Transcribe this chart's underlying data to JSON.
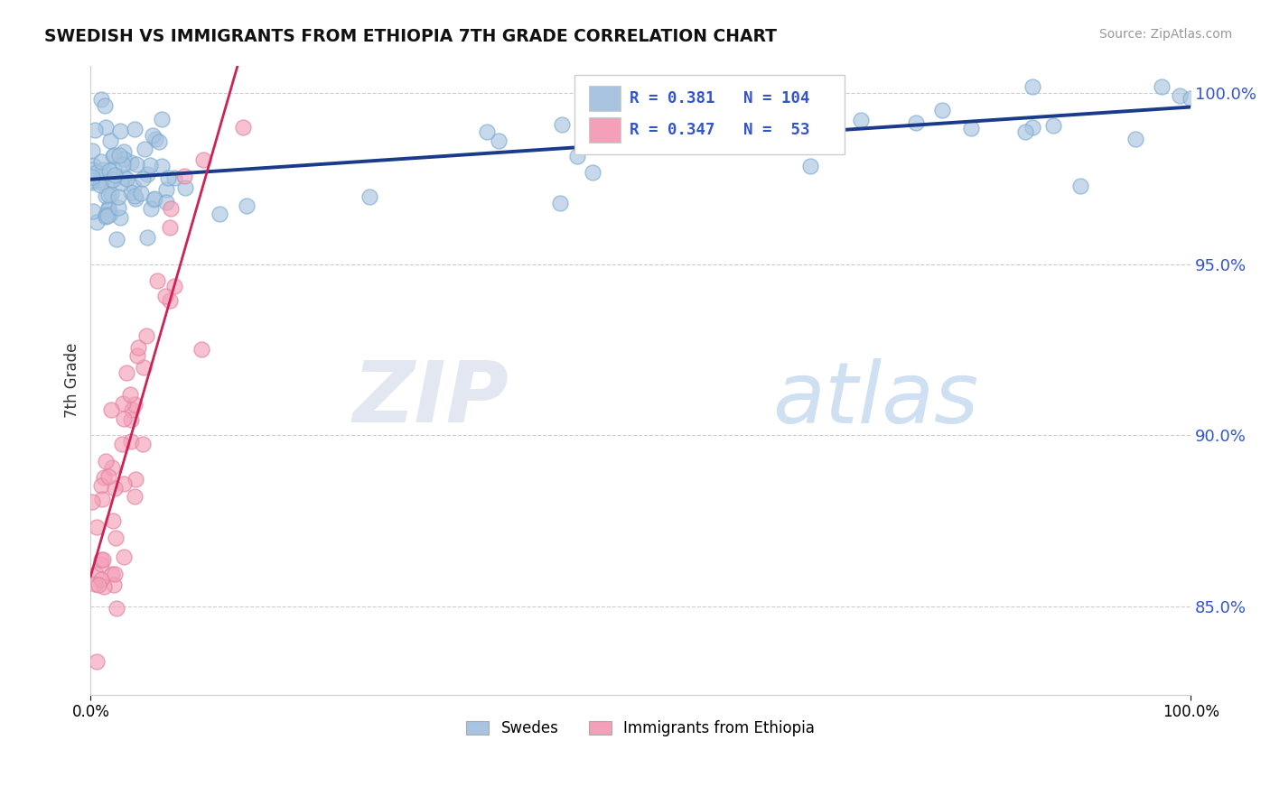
{
  "title": "SWEDISH VS IMMIGRANTS FROM ETHIOPIA 7TH GRADE CORRELATION CHART",
  "source_text": "Source: ZipAtlas.com",
  "ylabel": "7th Grade",
  "swedes_R": 0.381,
  "swedes_N": 104,
  "ethiopia_R": 0.347,
  "ethiopia_N": 53,
  "swede_color": "#a8c4e0",
  "swede_edge_color": "#7aaad0",
  "swede_line_color": "#1a3a8a",
  "ethiopia_color": "#f4a0b8",
  "ethiopia_edge_color": "#e080a0",
  "ethiopia_line_color": "#cc2255",
  "legend_label_swedes": "Swedes",
  "legend_label_ethiopia": "Immigrants from Ethiopia",
  "watermark_zip": "ZIP",
  "watermark_atlas": "atlas",
  "ytick_labels": [
    "85.0%",
    "90.0%",
    "95.0%",
    "100.0%"
  ],
  "ytick_values": [
    0.85,
    0.9,
    0.95,
    1.0
  ],
  "xmin": 0.0,
  "xmax": 1.0,
  "ymin": 0.824,
  "ymax": 1.008,
  "background_color": "#ffffff",
  "grid_color": "#cccccc",
  "ytick_color": "#3355cc",
  "title_color": "#111111",
  "source_color": "#999999"
}
